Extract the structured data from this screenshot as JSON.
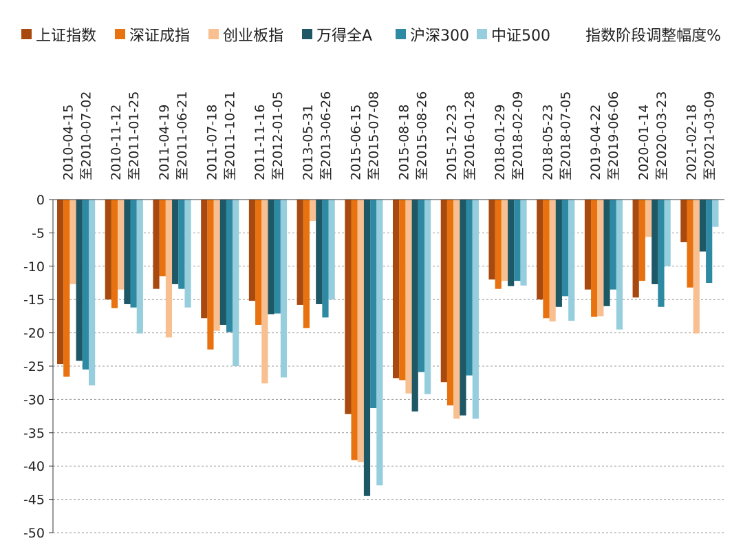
{
  "chart_data": {
    "type": "bar",
    "title": "",
    "unit_label": "指数阶段调整幅度%",
    "xlabel": "",
    "ylabel": "",
    "ylim": [
      -50,
      0
    ],
    "yticks": [
      0,
      -5,
      -10,
      -15,
      -20,
      -25,
      -30,
      -35,
      -40,
      -45,
      -50
    ],
    "grid": "horizontal-dashed",
    "legend_position": "top",
    "categories": [
      {
        "start": "2010-04-15",
        "end": "至2010-07-02"
      },
      {
        "start": "2010-11-12",
        "end": "至2011-01-25"
      },
      {
        "start": "2011-04-19",
        "end": "至2011-06-21"
      },
      {
        "start": "2011-07-18",
        "end": "至2011-10-21"
      },
      {
        "start": "2011-11-16",
        "end": "至2012-01-05"
      },
      {
        "start": "2013-05-31",
        "end": "至2013-06-26"
      },
      {
        "start": "2015-06-15",
        "end": "至2015-07-08"
      },
      {
        "start": "2015-08-18",
        "end": "至2015-08-26"
      },
      {
        "start": "2015-12-23",
        "end": "至2016-01-28"
      },
      {
        "start": "2018-01-29",
        "end": "至2018-02-09"
      },
      {
        "start": "2018-05-23",
        "end": "至2018-07-05"
      },
      {
        "start": "2019-04-22",
        "end": "至2019-06-06"
      },
      {
        "start": "2020-01-14",
        "end": "至2020-03-23"
      },
      {
        "start": "2021-02-18",
        "end": "至2021-03-09"
      }
    ],
    "series": [
      {
        "name": "上证指数",
        "color": "#a84a0f",
        "values": [
          -24.7,
          -15.0,
          -13.4,
          -17.8,
          -15.2,
          -15.8,
          -32.2,
          -26.8,
          -27.4,
          -12.0,
          -15.0,
          -13.5,
          -14.7,
          -6.4
        ]
      },
      {
        "name": "深证成指",
        "color": "#e8720f",
        "values": [
          -26.6,
          -16.3,
          -11.5,
          -22.5,
          -18.8,
          -19.3,
          -39.1,
          -27.1,
          -30.9,
          -13.4,
          -17.8,
          -17.6,
          -12.2,
          -13.2
        ]
      },
      {
        "name": "创业板指",
        "color": "#f8c090",
        "values": [
          -12.7,
          -13.5,
          -20.7,
          -19.7,
          -27.6,
          -3.2,
          -39.4,
          -29.1,
          -32.9,
          -12.2,
          -18.3,
          -17.5,
          -5.6,
          -20.1
        ]
      },
      {
        "name": "万得全A",
        "color": "#1e5866",
        "values": [
          -24.2,
          -15.7,
          -12.7,
          -18.8,
          -17.2,
          -15.7,
          -44.5,
          -31.8,
          -32.4,
          -13.0,
          -16.1,
          -16.0,
          -12.7,
          -7.8
        ]
      },
      {
        "name": "沪深300",
        "color": "#2e8aa3",
        "values": [
          -25.5,
          -16.2,
          -13.4,
          -19.9,
          -17.1,
          -17.7,
          -31.3,
          -25.9,
          -26.4,
          -12.2,
          -14.5,
          -13.5,
          -16.1,
          -12.5
        ]
      },
      {
        "name": "中证500",
        "color": "#96cedd",
        "values": [
          -27.9,
          -20.1,
          -16.2,
          -25.0,
          -26.7,
          -15.0,
          -42.9,
          -29.2,
          -32.9,
          -12.9,
          -18.2,
          -19.5,
          -10.0,
          -4.1
        ]
      }
    ]
  }
}
